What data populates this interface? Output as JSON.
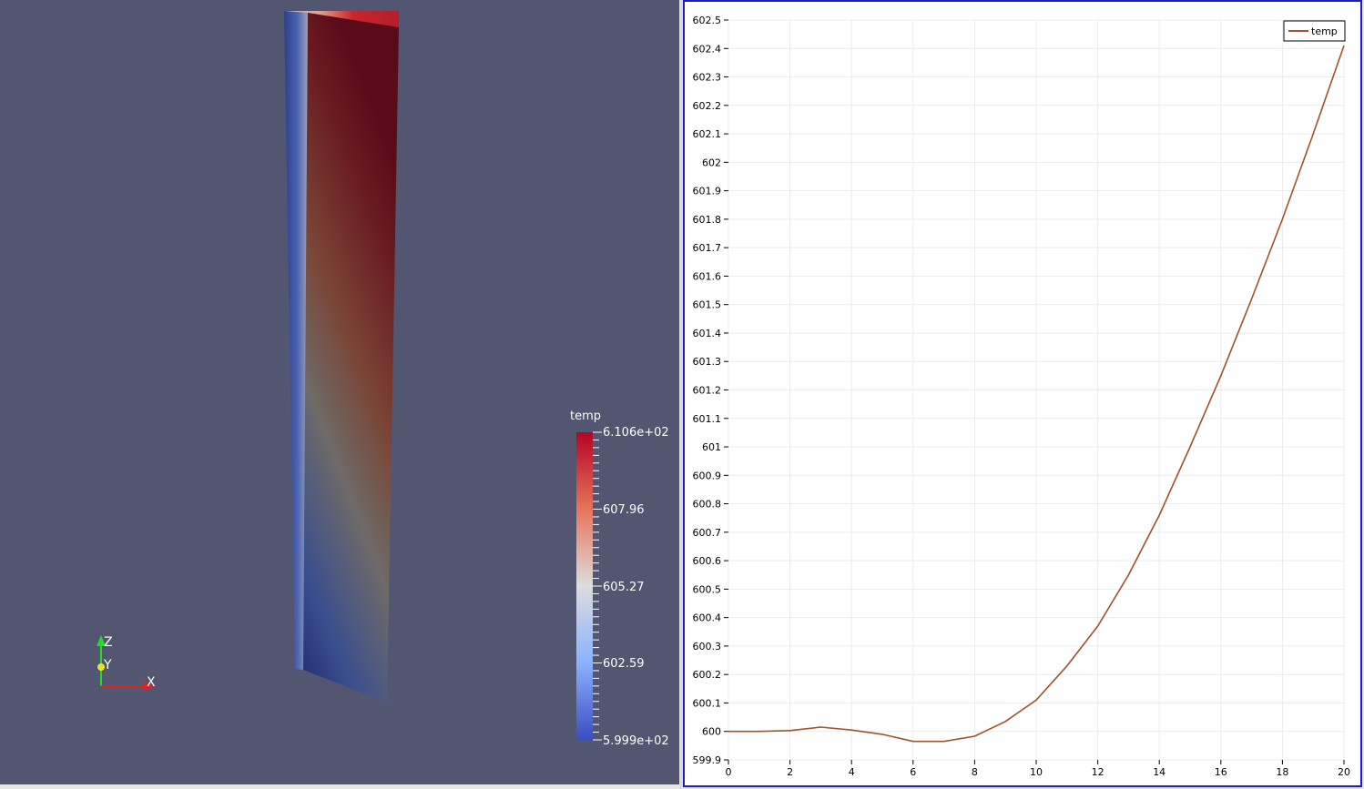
{
  "render_view": {
    "background": "#525670",
    "colorbar": {
      "title": "temp",
      "labels": [
        "6.106e+02",
        "607.96",
        "605.27",
        "602.59",
        "5.999e+02"
      ],
      "range": [
        599.9,
        610.6
      ],
      "colors": {
        "high": "#b40426",
        "mid": "#dddddd",
        "low": "#3b4cc0"
      }
    },
    "axes_triad": {
      "z": "Z",
      "y": "Y",
      "x": "X"
    }
  },
  "chart_data": {
    "type": "line",
    "series": [
      {
        "name": "temp",
        "color": "#a0522d",
        "x": [
          0,
          1,
          2,
          3,
          4,
          5,
          6,
          7,
          8,
          9,
          10,
          11,
          12,
          13,
          14,
          15,
          16,
          17,
          18,
          19,
          20
        ],
        "y": [
          600.0,
          600.0,
          600.003,
          600.015,
          600.005,
          599.99,
          599.965,
          599.965,
          599.983,
          600.035,
          600.11,
          600.23,
          600.37,
          600.55,
          600.76,
          601.0,
          601.25,
          601.52,
          601.8,
          602.1,
          602.41
        ]
      }
    ],
    "xlim": [
      0,
      20
    ],
    "ylim": [
      599.9,
      602.5
    ],
    "x_ticks": [
      "0",
      "2",
      "4",
      "6",
      "8",
      "10",
      "12",
      "14",
      "16",
      "18",
      "20"
    ],
    "y_ticks": [
      "599.9",
      "600",
      "600.1",
      "600.2",
      "600.3",
      "600.4",
      "600.5",
      "600.6",
      "600.7",
      "600.8",
      "600.9",
      "601",
      "601.1",
      "601.2",
      "601.3",
      "601.4",
      "601.5",
      "601.6",
      "601.7",
      "601.8",
      "601.9",
      "602",
      "602.1",
      "602.2",
      "602.3",
      "602.4",
      "602.5"
    ],
    "grid": true,
    "legend": "top-right",
    "title": "",
    "xlabel": "",
    "ylabel": ""
  }
}
